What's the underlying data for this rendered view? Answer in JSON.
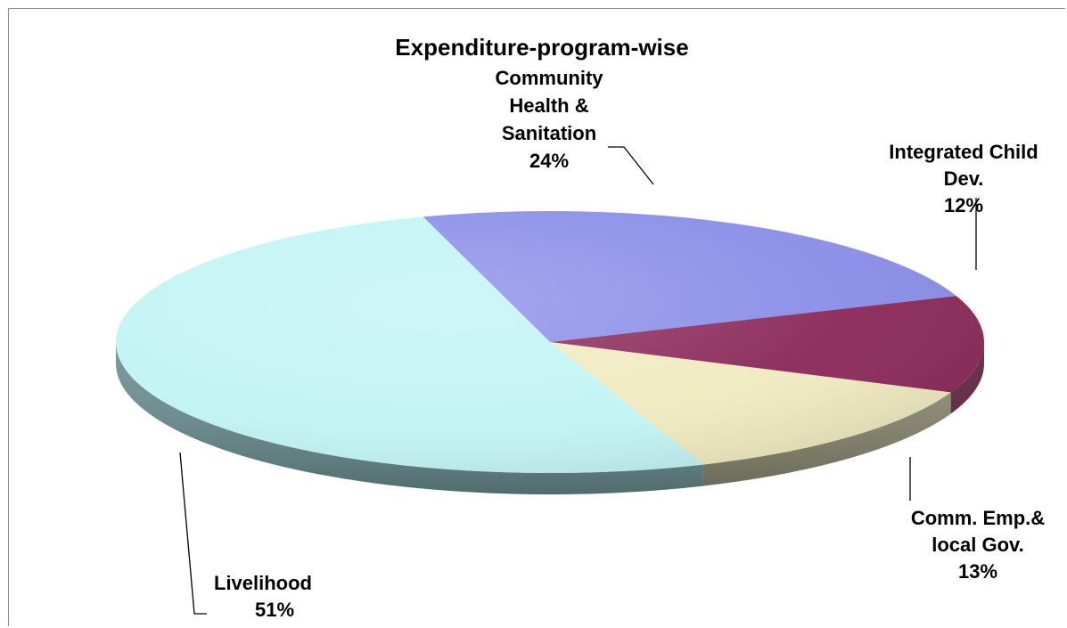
{
  "chart_data": {
    "type": "pie",
    "title": "Expenditure-program-wise",
    "categories": [
      "Community Health & Sanitation",
      "Integrated Child Dev.",
      "Comm. Emp.& local Gov.",
      "Livelihood"
    ],
    "label_lines": [
      [
        "Community",
        "Health &",
        "Sanitation"
      ],
      [
        "Integrated Child",
        "Dev."
      ],
      [
        "Comm. Emp.&",
        "local Gov."
      ],
      [
        "Livelihood"
      ]
    ],
    "values": [
      24,
      12,
      13,
      51
    ],
    "percent_labels": [
      "24%",
      "12%",
      "13%",
      "51%"
    ],
    "colors": [
      "#8a8ee8",
      "#8c2a5a",
      "#f0ebc0",
      "#c2f4f4"
    ],
    "side_colors": [
      "#5a5c98",
      "#5a1c3c",
      "#8a8870",
      "#6a8f92"
    ],
    "legend": "none"
  }
}
